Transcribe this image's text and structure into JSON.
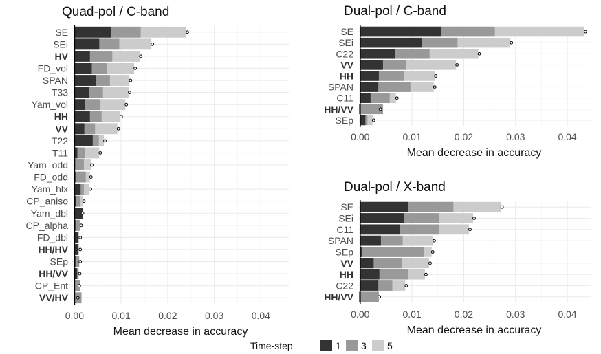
{
  "chart_data": [
    {
      "type": "bar",
      "title": "Quad-pol / C-band",
      "xlabel": "Mean decrease in accuracy",
      "ylabel": "",
      "xlim": [
        -0.0005,
        0.046
      ],
      "xticks": [
        0,
        0.01,
        0.02,
        0.03,
        0.04
      ],
      "xtick_labels": [
        "0.00",
        "0.01",
        "0.02",
        "0.03",
        "0.04"
      ],
      "grid": true,
      "categories": [
        "SE",
        "SEi",
        "HV",
        "FD_vol",
        "SPAN",
        "T33",
        "Yam_vol",
        "HH",
        "VV",
        "T22",
        "T11",
        "Yam_odd",
        "FD_odd",
        "Yam_hlx",
        "CP_aniso",
        "Yam_dbl",
        "CP_alpha",
        "FD_dbl",
        "HH/HV",
        "SEp",
        "HH/VV",
        "CP_Ent",
        "VV/HV"
      ],
      "bold_categories": [
        "HV",
        "HH",
        "VV",
        "HH/HV",
        "HH/VV",
        "VV/HV"
      ],
      "series": [
        {
          "name": "1",
          "values": [
            0.0078,
            0.0053,
            0.0033,
            0.0037,
            0.0046,
            0.0031,
            0.0023,
            0.0033,
            0.0021,
            0.0039,
            0.0006,
            0.0001,
            0.0002,
            0.0013,
            0.0003,
            0.0018,
            0.0002,
            0.0007,
            0.0007,
            0.0002,
            0.0006,
            -0.0001,
            -0.0001
          ]
        },
        {
          "name": "3",
          "values": [
            0.0142,
            0.0096,
            0.0081,
            0.007,
            0.0076,
            0.0061,
            0.0055,
            0.0058,
            0.0044,
            0.0052,
            0.0023,
            0.002,
            0.0024,
            0.002,
            0.0012,
            0.0014,
            0.0011,
            0.0008,
            0.0006,
            0.001,
            0.0005,
            0.0012,
            0.0015
          ]
        },
        {
          "name": "5",
          "values": [
            0.024,
            0.0165,
            0.014,
            0.0128,
            0.0118,
            0.0116,
            0.0109,
            0.0098,
            0.0092,
            0.0063,
            0.0053,
            0.0035,
            0.0033,
            0.0032,
            0.0018,
            0.0015,
            0.0012,
            0.001,
            0.001,
            0.001,
            0.0009,
            0.0008,
            0.0005
          ]
        }
      ],
      "time_step_5_markers": true
    },
    {
      "type": "bar",
      "title": "Dual-pol / C-band",
      "xlabel": "Mean decrease in accuracy",
      "ylabel": "",
      "xlim": [
        -0.0005,
        0.0445
      ],
      "xticks": [
        0,
        0.01,
        0.02,
        0.03,
        0.04
      ],
      "xtick_labels": [
        "0.00",
        "0.01",
        "0.02",
        "0.03",
        "0.04"
      ],
      "grid": true,
      "categories": [
        "SE",
        "SEi",
        "C22",
        "VV",
        "HH",
        "SPAN",
        "C11",
        "HH/VV",
        "SEp"
      ],
      "bold_categories": [
        "VV",
        "HH",
        "HH/VV"
      ],
      "series": [
        {
          "name": "1",
          "values": [
            0.0157,
            0.0119,
            0.0067,
            0.0044,
            0.0036,
            0.0035,
            0.002,
            -0.0002,
            0.001
          ]
        },
        {
          "name": "3",
          "values": [
            0.026,
            0.0188,
            0.0134,
            0.0089,
            0.0084,
            0.0097,
            0.0057,
            0.0044,
            0.0014
          ]
        },
        {
          "name": "5",
          "values": [
            0.0433,
            0.029,
            0.0228,
            0.0185,
            0.0144,
            0.0142,
            0.0069,
            0.0037,
            0.0024
          ]
        }
      ],
      "time_step_5_markers": true
    },
    {
      "type": "bar",
      "title": "Dual-pol / X-band",
      "xlabel": "Mean decrease in accuracy",
      "ylabel": "",
      "xlim": [
        -0.0005,
        0.0445
      ],
      "xticks": [
        0,
        0.01,
        0.02,
        0.03,
        0.04
      ],
      "xtick_labels": [
        "0.00",
        "0.01",
        "0.02",
        "0.03",
        "0.04"
      ],
      "grid": true,
      "categories": [
        "SE",
        "SEi",
        "C11",
        "SPAN",
        "SEp",
        "VV",
        "HH",
        "C22",
        "HH/VV"
      ],
      "bold_categories": [
        "VV",
        "HH",
        "HH/VV"
      ],
      "series": [
        {
          "name": "1",
          "values": [
            0.0093,
            0.0085,
            0.0077,
            0.004,
            0.0003,
            0.0026,
            0.0037,
            0.0035,
            -0.0002
          ]
        },
        {
          "name": "3",
          "values": [
            0.018,
            0.0153,
            0.0153,
            0.0082,
            0.0123,
            0.008,
            0.0092,
            0.0062,
            0.0036
          ]
        },
        {
          "name": "5",
          "values": [
            0.0272,
            0.0218,
            0.021,
            0.0141,
            0.0138,
            0.0133,
            0.0125,
            0.0087,
            0.0035
          ]
        }
      ],
      "time_step_5_markers": true
    }
  ],
  "legend": {
    "title": "Time-step",
    "placement": "bottom",
    "items": [
      {
        "label": "1",
        "color": "#333333"
      },
      {
        "label": "3",
        "color": "#999999"
      },
      {
        "label": "5",
        "color": "#cccccc"
      }
    ]
  },
  "colors": {
    "ts1": "#333333",
    "ts3": "#999999",
    "ts5": "#cccccc"
  }
}
